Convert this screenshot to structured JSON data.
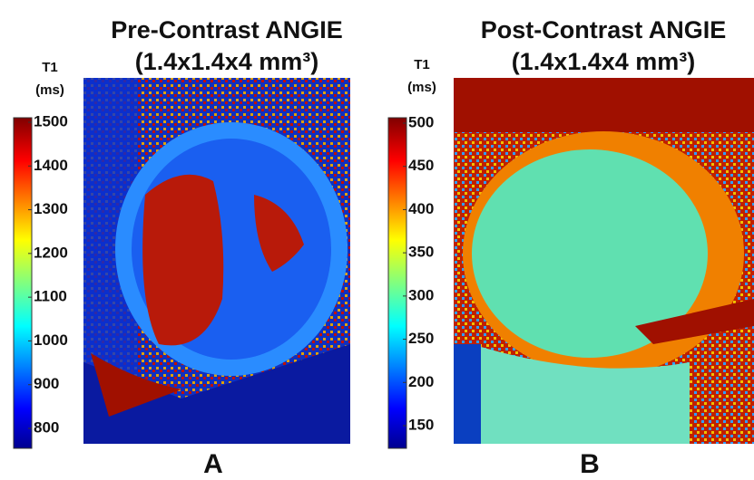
{
  "panels": [
    {
      "title_lines": [
        "Pre-Contrast ANGIE",
        "(1.4x1.4x4 mm³)"
      ],
      "colorbar_label": [
        "T1",
        "(ms)"
      ],
      "ticks": [
        1500,
        1400,
        1300,
        1200,
        1100,
        1000,
        900,
        800
      ],
      "letter": "A"
    },
    {
      "title_lines": [
        "Post-Contrast ANGIE",
        "(1.4x1.4x4 mm³)"
      ],
      "colorbar_label": [
        "T1",
        "(ms)"
      ],
      "ticks": [
        500,
        450,
        400,
        350,
        300,
        250,
        200,
        150
      ],
      "letter": "B"
    }
  ]
}
